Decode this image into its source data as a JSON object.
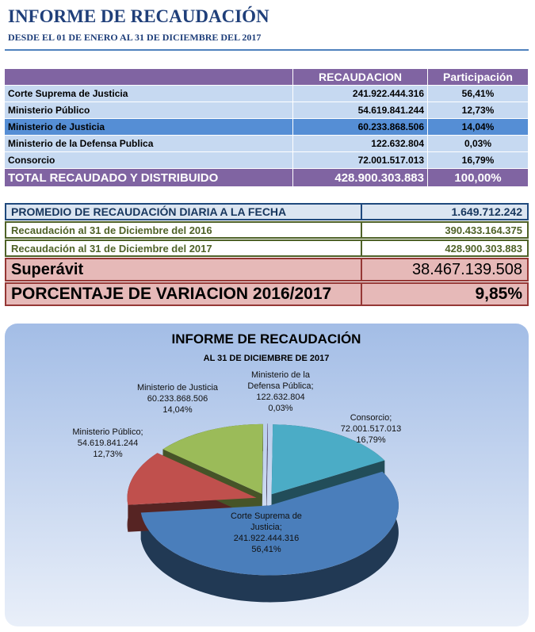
{
  "header": {
    "title": "INFORME DE RECAUDACIÓN",
    "subtitle": "DESDE EL 01 DE ENERO AL 31 DE DICIEMBRE DEL 2017"
  },
  "table": {
    "columns": [
      "RECAUDACION",
      "Participación"
    ],
    "rows": [
      [
        "Corte Suprema de Justicia",
        "241.922.444.316",
        "56,41%"
      ],
      [
        "Ministerio Público",
        "54.619.841.244",
        "12,73%"
      ],
      [
        "Ministerio de Justicia",
        "60.233.868.506",
        "14,04%"
      ],
      [
        "Ministerio de la Defensa Publica",
        "122.632.804",
        "0,03%"
      ],
      [
        "Consorcio",
        "72.001.517.013",
        "16,79%"
      ]
    ],
    "total": [
      "TOTAL RECAUDADO Y DISTRIBUIDO",
      "428.900.303.883",
      "100,00%"
    ]
  },
  "summary": {
    "rows": [
      [
        "PROMEDIO DE RECAUDACIÓN DIARIA A LA FECHA",
        "1.649.712.242"
      ],
      [
        "Recaudación al 31 de Diciembre del 2016",
        "390.433.164.375"
      ],
      [
        "Recaudación al 31 de Diciembre del 2017",
        "428.900.303.883"
      ],
      [
        "Superávit",
        "38.467.139.508"
      ],
      [
        "PORCENTAJE DE VARIACION 2016/2017",
        "9,85%"
      ]
    ]
  },
  "chart_data": {
    "type": "pie",
    "title": "INFORME DE RECAUDACIÓN",
    "subtitle": "AL 31 DE DICIEMBRE DE 2017",
    "categories": [
      "Corte Suprema de Justicia;",
      "Ministerio Público;",
      "Ministerio de Justicia",
      "Ministerio de la Defensa Pública;",
      "Consorcio;"
    ],
    "values": [
      56.41,
      12.73,
      14.04,
      0.03,
      16.79
    ],
    "value_labels": [
      "56,41%",
      "12,73%",
      "14,04%",
      "0,03%",
      "16,79%"
    ],
    "amount_labels": [
      "241.922.444.316",
      "54.619.841.244",
      "60.233.868.506",
      "122.632.804",
      "72.001.517.013"
    ],
    "colors": [
      "#4a7ebb",
      "#c0504d",
      "#9bbb59",
      "#8064a2",
      "#4bacc6"
    ]
  }
}
